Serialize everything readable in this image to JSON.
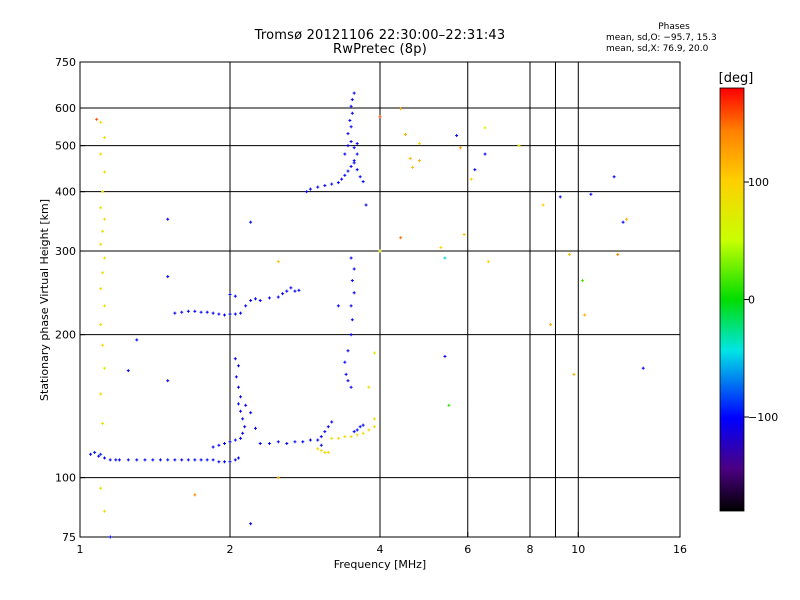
{
  "header": {
    "title_line1": "Tromsø 20121106 22:30:00–22:31:43",
    "title_line2": "RwPretec (8p)"
  },
  "stats": {
    "heading": "Phases",
    "o_mode": "mean, sd,O: −95.7, 15.3",
    "x_mode": "mean, sd,X:  76.9, 20.0"
  },
  "colorbar": {
    "label": "[deg]",
    "min": -180,
    "max": 180,
    "ticks": [
      {
        "value": 100,
        "label": "100"
      },
      {
        "value": 0,
        "label": "0"
      },
      {
        "value": -100,
        "label": "−100"
      }
    ]
  },
  "chart_data": {
    "type": "scatter",
    "title": "Tromsø 20121106 22:30:00–22:31:43",
    "subtitle": "RwPretec (8p)",
    "xlabel": "Frequency [MHz]",
    "ylabel": "Stationary phase Virtual Height [km]",
    "xscale": "log",
    "yscale": "log",
    "xlim": [
      1,
      16
    ],
    "ylim": [
      75,
      750
    ],
    "grid": true,
    "x_ticks": [
      {
        "value": 1,
        "label": "1"
      },
      {
        "value": 2,
        "label": "2"
      },
      {
        "value": 4,
        "label": "4"
      },
      {
        "value": 6,
        "label": "6"
      },
      {
        "value": 8,
        "label": "8"
      },
      {
        "value": 10,
        "label": "10"
      },
      {
        "value": 16,
        "label": "16"
      }
    ],
    "y_ticks": [
      {
        "value": 75,
        "label": "75"
      },
      {
        "value": 100,
        "label": "100"
      },
      {
        "value": 200,
        "label": "200"
      },
      {
        "value": 300,
        "label": "300"
      },
      {
        "value": 400,
        "label": "400"
      },
      {
        "value": 500,
        "label": "500"
      },
      {
        "value": 600,
        "label": "600"
      },
      {
        "value": 750,
        "label": "750"
      }
    ],
    "x_gridlines": [
      2,
      4,
      6,
      8,
      9,
      10
    ],
    "y_gridlines": [
      100,
      200,
      300,
      400,
      500,
      600
    ],
    "color_encoding": "phase [deg]",
    "points": [
      [
        1.05,
        112,
        -100
      ],
      [
        1.07,
        113,
        -95
      ],
      [
        1.09,
        111,
        -105
      ],
      [
        1.1,
        112,
        -90
      ],
      [
        1.12,
        110,
        -100
      ],
      [
        1.15,
        109,
        -98
      ],
      [
        1.18,
        109,
        -102
      ],
      [
        1.2,
        109,
        -100
      ],
      [
        1.25,
        109,
        -97
      ],
      [
        1.3,
        109,
        -100
      ],
      [
        1.35,
        109,
        -103
      ],
      [
        1.4,
        109,
        -99
      ],
      [
        1.45,
        109,
        -100
      ],
      [
        1.5,
        109,
        -96
      ],
      [
        1.55,
        109,
        -101
      ],
      [
        1.6,
        109,
        -100
      ],
      [
        1.65,
        109,
        -98
      ],
      [
        1.7,
        109,
        -102
      ],
      [
        1.75,
        109,
        -100
      ],
      [
        1.8,
        109,
        -97
      ],
      [
        1.85,
        109,
        -99
      ],
      [
        1.9,
        108,
        -101
      ],
      [
        1.95,
        108,
        -100
      ],
      [
        2.0,
        108,
        -98
      ],
      [
        2.05,
        109,
        -102
      ],
      [
        2.08,
        110,
        -100
      ],
      [
        1.85,
        116,
        -100
      ],
      [
        1.9,
        117,
        -98
      ],
      [
        1.95,
        118,
        -102
      ],
      [
        2.0,
        119,
        -100
      ],
      [
        2.05,
        120,
        -96
      ],
      [
        2.1,
        121,
        -100
      ],
      [
        2.12,
        124,
        -100
      ],
      [
        2.14,
        128,
        -102
      ],
      [
        2.12,
        133,
        -98
      ],
      [
        2.1,
        138,
        -100
      ],
      [
        2.08,
        143,
        -97
      ],
      [
        2.1,
        148,
        -100
      ],
      [
        2.08,
        155,
        -102
      ],
      [
        2.06,
        163,
        -100
      ],
      [
        2.08,
        172,
        -98
      ],
      [
        2.05,
        178,
        -100
      ],
      [
        2.15,
        142,
        -101
      ],
      [
        2.2,
        137,
        -99
      ],
      [
        2.25,
        127,
        -100
      ],
      [
        2.3,
        118,
        -100
      ],
      [
        2.4,
        118,
        -98
      ],
      [
        2.5,
        119,
        -102
      ],
      [
        2.6,
        118,
        -100
      ],
      [
        2.7,
        119,
        -97
      ],
      [
        2.8,
        119,
        -100
      ],
      [
        2.9,
        120,
        -100
      ],
      [
        3.0,
        120,
        -99
      ],
      [
        3.05,
        122,
        -101
      ],
      [
        3.1,
        125,
        -100
      ],
      [
        3.15,
        128,
        -102
      ],
      [
        3.2,
        131,
        -100
      ],
      [
        3.05,
        117,
        -97
      ],
      [
        3.0,
        115,
        90
      ],
      [
        3.05,
        114,
        88
      ],
      [
        3.1,
        113,
        92
      ],
      [
        3.15,
        113,
        90
      ],
      [
        3.2,
        121,
        85
      ],
      [
        3.3,
        121,
        88
      ],
      [
        3.4,
        122,
        90
      ],
      [
        3.5,
        122,
        86
      ],
      [
        3.6,
        123,
        89
      ],
      [
        3.7,
        124,
        87
      ],
      [
        3.8,
        126,
        90
      ],
      [
        3.9,
        128,
        88
      ],
      [
        3.9,
        133,
        85
      ],
      [
        3.55,
        125,
        -100
      ],
      [
        3.6,
        126,
        -100
      ],
      [
        3.65,
        128,
        -97
      ],
      [
        3.7,
        129,
        -102
      ],
      [
        1.55,
        222,
        -100
      ],
      [
        1.6,
        223,
        -98
      ],
      [
        1.65,
        224,
        -102
      ],
      [
        1.7,
        224,
        -100
      ],
      [
        1.75,
        223,
        -96
      ],
      [
        1.8,
        223,
        -100
      ],
      [
        1.85,
        222,
        -101
      ],
      [
        1.9,
        221,
        -99
      ],
      [
        1.95,
        220,
        -100
      ],
      [
        2.0,
        221,
        -102
      ],
      [
        2.05,
        221,
        -98
      ],
      [
        2.1,
        222,
        -100
      ],
      [
        2.15,
        230,
        -100
      ],
      [
        2.2,
        236,
        -98
      ],
      [
        2.25,
        238,
        -102
      ],
      [
        2.3,
        236,
        -100
      ],
      [
        2.4,
        239,
        -97
      ],
      [
        2.5,
        240,
        -100
      ],
      [
        2.55,
        244,
        -101
      ],
      [
        2.6,
        247,
        -100
      ],
      [
        2.65,
        251,
        -98
      ],
      [
        2.7,
        247,
        -102
      ],
      [
        2.75,
        248,
        -100
      ],
      [
        2.0,
        243,
        -100
      ],
      [
        2.05,
        241,
        -99
      ],
      [
        2.85,
        400,
        -100
      ],
      [
        2.9,
        405,
        -98
      ],
      [
        3.0,
        409,
        -102
      ],
      [
        3.1,
        412,
        -100
      ],
      [
        3.2,
        415,
        -97
      ],
      [
        3.3,
        418,
        -100
      ],
      [
        3.35,
        425,
        -101
      ],
      [
        3.4,
        433,
        -100
      ],
      [
        3.45,
        442,
        -98
      ],
      [
        3.5,
        452,
        -102
      ],
      [
        3.55,
        465,
        -100
      ],
      [
        3.6,
        480,
        -97
      ],
      [
        3.55,
        495,
        -100
      ],
      [
        3.5,
        510,
        -101
      ],
      [
        3.45,
        530,
        -100
      ],
      [
        3.5,
        548,
        -98
      ],
      [
        3.48,
        565,
        -102
      ],
      [
        3.52,
        585,
        -100
      ],
      [
        3.5,
        605,
        -97
      ],
      [
        3.52,
        625,
        -100
      ],
      [
        3.55,
        645,
        -101
      ],
      [
        3.6,
        445,
        -100
      ],
      [
        3.65,
        430,
        -98
      ],
      [
        3.7,
        420,
        -100
      ],
      [
        3.4,
        480,
        -102
      ],
      [
        3.45,
        500,
        -100
      ],
      [
        3.55,
        460,
        -99
      ],
      [
        3.6,
        505,
        -100
      ],
      [
        3.5,
        200,
        -100
      ],
      [
        3.52,
        215,
        -98
      ],
      [
        3.5,
        230,
        -102
      ],
      [
        3.55,
        245,
        -100
      ],
      [
        3.52,
        260,
        -97
      ],
      [
        3.55,
        275,
        -100
      ],
      [
        3.5,
        290,
        -101
      ],
      [
        3.45,
        185,
        -100
      ],
      [
        3.4,
        175,
        -98
      ],
      [
        3.42,
        165,
        -102
      ],
      [
        3.45,
        160,
        -100
      ],
      [
        3.5,
        155,
        -99
      ],
      [
        1.1,
        560,
        90
      ],
      [
        1.12,
        520,
        88
      ],
      [
        1.1,
        480,
        92
      ],
      [
        1.12,
        440,
        90
      ],
      [
        1.11,
        400,
        85
      ],
      [
        1.1,
        370,
        88
      ],
      [
        1.12,
        350,
        90
      ],
      [
        1.11,
        330,
        86
      ],
      [
        1.1,
        310,
        89
      ],
      [
        1.12,
        290,
        87
      ],
      [
        1.11,
        270,
        90
      ],
      [
        1.1,
        250,
        88
      ],
      [
        1.12,
        230,
        85
      ],
      [
        1.1,
        210,
        88
      ],
      [
        1.11,
        190,
        90
      ],
      [
        1.12,
        170,
        60
      ],
      [
        1.1,
        150,
        90
      ],
      [
        1.11,
        130,
        88
      ],
      [
        1.1,
        95,
        90
      ],
      [
        1.12,
        85,
        88
      ],
      [
        1.08,
        568,
        160
      ],
      [
        1.15,
        75,
        -100
      ],
      [
        1.5,
        350,
        -100
      ],
      [
        1.5,
        265,
        -100
      ],
      [
        1.3,
        195,
        -100
      ],
      [
        1.25,
        168,
        -100
      ],
      [
        1.5,
        160,
        -100
      ],
      [
        1.7,
        92,
        140
      ],
      [
        2.2,
        80,
        -100
      ],
      [
        2.2,
        345,
        -100
      ],
      [
        2.5,
        100,
        120
      ],
      [
        2.5,
        285,
        110
      ],
      [
        3.3,
        230,
        -100
      ],
      [
        3.75,
        375,
        -100
      ],
      [
        3.9,
        183,
        70
      ],
      [
        3.8,
        155,
        90
      ],
      [
        4.0,
        300,
        80
      ],
      [
        4.0,
        575,
        160
      ],
      [
        4.4,
        598,
        120
      ],
      [
        4.4,
        320,
        150
      ],
      [
        4.5,
        528,
        120
      ],
      [
        4.6,
        470,
        115
      ],
      [
        4.65,
        450,
        112
      ],
      [
        4.8,
        505,
        100
      ],
      [
        4.8,
        465,
        115
      ],
      [
        5.3,
        305,
        100
      ],
      [
        5.4,
        290,
        -50
      ],
      [
        5.4,
        180,
        -100
      ],
      [
        5.5,
        142,
        10
      ],
      [
        5.7,
        525,
        -100
      ],
      [
        5.8,
        495,
        130
      ],
      [
        5.9,
        325,
        110
      ],
      [
        6.1,
        425,
        100
      ],
      [
        6.2,
        445,
        -100
      ],
      [
        6.5,
        545,
        60
      ],
      [
        6.5,
        480,
        -100
      ],
      [
        6.6,
        285,
        100
      ],
      [
        7.6,
        500,
        80
      ],
      [
        8.5,
        375,
        100
      ],
      [
        8.8,
        210,
        120
      ],
      [
        9.2,
        390,
        -100
      ],
      [
        9.6,
        295,
        110
      ],
      [
        9.8,
        165,
        120
      ],
      [
        10.2,
        260,
        20
      ],
      [
        10.3,
        220,
        120
      ],
      [
        10.6,
        395,
        -100
      ],
      [
        11.8,
        430,
        -100
      ],
      [
        12.0,
        295,
        140
      ],
      [
        12.3,
        345,
        -100
      ],
      [
        12.5,
        350,
        120
      ],
      [
        13.5,
        170,
        -100
      ]
    ]
  }
}
